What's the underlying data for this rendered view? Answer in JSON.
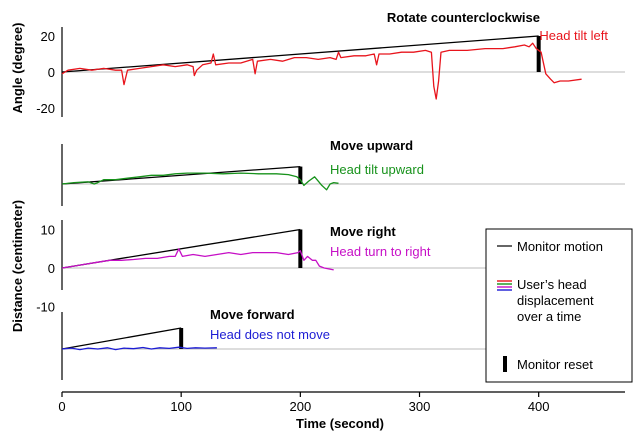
{
  "chart_data": {
    "type": "line",
    "x_axis": {
      "label": "Time (second)",
      "range": [
        0,
        480
      ],
      "ticks": [
        0,
        100,
        200,
        300,
        400
      ]
    },
    "y_axis_labels": {
      "angle": "Angle (degree)",
      "distance": "Distance (centimeter)"
    },
    "colors": {
      "red": "#e8141c",
      "green": "#17921b",
      "magenta": "#c60fc6",
      "blue": "#1c1cd4",
      "black": "#000000",
      "grid": "#bbbbbb"
    },
    "panels": [
      {
        "id": "rotate",
        "y_ticks": [
          20,
          0,
          -20
        ],
        "y_range": [
          -25,
          25
        ],
        "title": "Rotate counterclockwise",
        "head_label": "Head tilt left",
        "color": "red",
        "monitor_motion": [
          [
            0,
            0
          ],
          [
            400,
            20
          ]
        ],
        "monitor_reset": {
          "x": 400,
          "y_range": [
            0,
            20
          ]
        },
        "head": [
          [
            0,
            -1
          ],
          [
            5,
            1
          ],
          [
            15,
            2
          ],
          [
            25,
            1
          ],
          [
            35,
            2
          ],
          [
            45,
            1
          ],
          [
            50,
            1
          ],
          [
            52,
            -7
          ],
          [
            55,
            1
          ],
          [
            65,
            2
          ],
          [
            75,
            3
          ],
          [
            85,
            4
          ],
          [
            95,
            3
          ],
          [
            105,
            4
          ],
          [
            110,
            3
          ],
          [
            111,
            -2
          ],
          [
            113,
            1
          ],
          [
            118,
            4
          ],
          [
            125,
            5
          ],
          [
            127,
            10
          ],
          [
            129,
            4
          ],
          [
            140,
            5
          ],
          [
            150,
            5
          ],
          [
            160,
            7
          ],
          [
            162,
            -1
          ],
          [
            164,
            6
          ],
          [
            175,
            7
          ],
          [
            185,
            6
          ],
          [
            195,
            8
          ],
          [
            205,
            8
          ],
          [
            215,
            7
          ],
          [
            225,
            8
          ],
          [
            230,
            7
          ],
          [
            232,
            11
          ],
          [
            234,
            8
          ],
          [
            245,
            9
          ],
          [
            255,
            9
          ],
          [
            262,
            10
          ],
          [
            264,
            4
          ],
          [
            266,
            10
          ],
          [
            275,
            10
          ],
          [
            285,
            11
          ],
          [
            295,
            11
          ],
          [
            305,
            12
          ],
          [
            310,
            11
          ],
          [
            312,
            -8
          ],
          [
            314,
            -15
          ],
          [
            316,
            -5
          ],
          [
            318,
            11
          ],
          [
            325,
            12
          ],
          [
            340,
            12
          ],
          [
            355,
            13
          ],
          [
            370,
            13
          ],
          [
            380,
            14
          ],
          [
            388,
            15
          ],
          [
            392,
            14
          ],
          [
            395,
            16
          ],
          [
            398,
            13
          ],
          [
            402,
            11
          ],
          [
            406,
            -1
          ],
          [
            410,
            -4
          ],
          [
            413,
            -6
          ],
          [
            418,
            -5
          ],
          [
            425,
            -5
          ],
          [
            436,
            -4
          ]
        ]
      },
      {
        "id": "upward",
        "y_ticks": [],
        "y_range": [
          -20,
          20
        ],
        "title": "Move upward",
        "head_label": "Head tilt upward",
        "color": "green",
        "monitor_motion": [
          [
            0,
            0
          ],
          [
            200,
            12
          ]
        ],
        "monitor_reset": {
          "x": 200,
          "y_range": [
            0,
            12
          ]
        },
        "head": [
          [
            0,
            0
          ],
          [
            10,
            1
          ],
          [
            22,
            1.5
          ],
          [
            27,
            0
          ],
          [
            30,
            1
          ],
          [
            35,
            3
          ],
          [
            45,
            3
          ],
          [
            55,
            4
          ],
          [
            65,
            5
          ],
          [
            75,
            6
          ],
          [
            85,
            6
          ],
          [
            95,
            7
          ],
          [
            105,
            7.5
          ],
          [
            120,
            7.5
          ],
          [
            135,
            7
          ],
          [
            150,
            7.5
          ],
          [
            165,
            7
          ],
          [
            180,
            7
          ],
          [
            190,
            6.5
          ],
          [
            197,
            5
          ],
          [
            200,
            3
          ],
          [
            203,
            -1
          ],
          [
            207,
            2
          ],
          [
            212,
            5
          ],
          [
            215,
            2
          ],
          [
            218,
            -1
          ],
          [
            222,
            -4
          ],
          [
            225,
            0
          ],
          [
            228,
            1
          ],
          [
            232,
            0.5
          ]
        ]
      },
      {
        "id": "right",
        "y_ticks": [
          10,
          0,
          -10
        ],
        "y_range": [
          -15,
          15
        ],
        "title": "Move right",
        "head_label": "Head turn to right",
        "color": "magenta",
        "monitor_motion": [
          [
            0,
            0
          ],
          [
            200,
            10
          ]
        ],
        "monitor_reset": {
          "x": 200,
          "y_range": [
            0,
            10
          ]
        },
        "head": [
          [
            0,
            0
          ],
          [
            10,
            0.5
          ],
          [
            20,
            1
          ],
          [
            30,
            1.5
          ],
          [
            40,
            2
          ],
          [
            50,
            2
          ],
          [
            60,
            2.2
          ],
          [
            70,
            2.5
          ],
          [
            80,
            2.5
          ],
          [
            90,
            3
          ],
          [
            95,
            3
          ],
          [
            98,
            5
          ],
          [
            101,
            3
          ],
          [
            110,
            3.5
          ],
          [
            120,
            3
          ],
          [
            130,
            3.5
          ],
          [
            140,
            4
          ],
          [
            150,
            3.5
          ],
          [
            160,
            4
          ],
          [
            170,
            4
          ],
          [
            180,
            4
          ],
          [
            190,
            3.5
          ],
          [
            198,
            4
          ],
          [
            200,
            4.5
          ],
          [
            203,
            2
          ],
          [
            206,
            3
          ],
          [
            210,
            2
          ],
          [
            213,
            2
          ],
          [
            216,
            0.5
          ],
          [
            220,
            0
          ],
          [
            228,
            -0.5
          ]
        ]
      },
      {
        "id": "forward",
        "y_ticks": [],
        "y_range": [
          -20,
          20
        ],
        "title": "Move forward",
        "head_label": "Head does not move",
        "color": "blue",
        "monitor_motion": [
          [
            0,
            0
          ],
          [
            100,
            7
          ]
        ],
        "monitor_reset": {
          "x": 100,
          "y_range": [
            0,
            7
          ]
        },
        "head": [
          [
            0,
            0
          ],
          [
            8,
            0.3
          ],
          [
            15,
            -0.2
          ],
          [
            22,
            0.3
          ],
          [
            30,
            0
          ],
          [
            38,
            0.4
          ],
          [
            45,
            -0.2
          ],
          [
            52,
            0.3
          ],
          [
            60,
            0.1
          ],
          [
            68,
            0.5
          ],
          [
            75,
            0
          ],
          [
            82,
            0.4
          ],
          [
            90,
            0.2
          ],
          [
            98,
            0.6
          ],
          [
            105,
            0.2
          ],
          [
            112,
            0.4
          ],
          [
            120,
            0.3
          ],
          [
            130,
            0.4
          ]
        ]
      }
    ],
    "legend": {
      "monitor_motion": "Monitor motion",
      "head_displacement": "User’s head displacement over a time",
      "monitor_reset": "Monitor reset",
      "swatch_colors": [
        "red",
        "green",
        "magenta",
        "blue"
      ]
    }
  }
}
